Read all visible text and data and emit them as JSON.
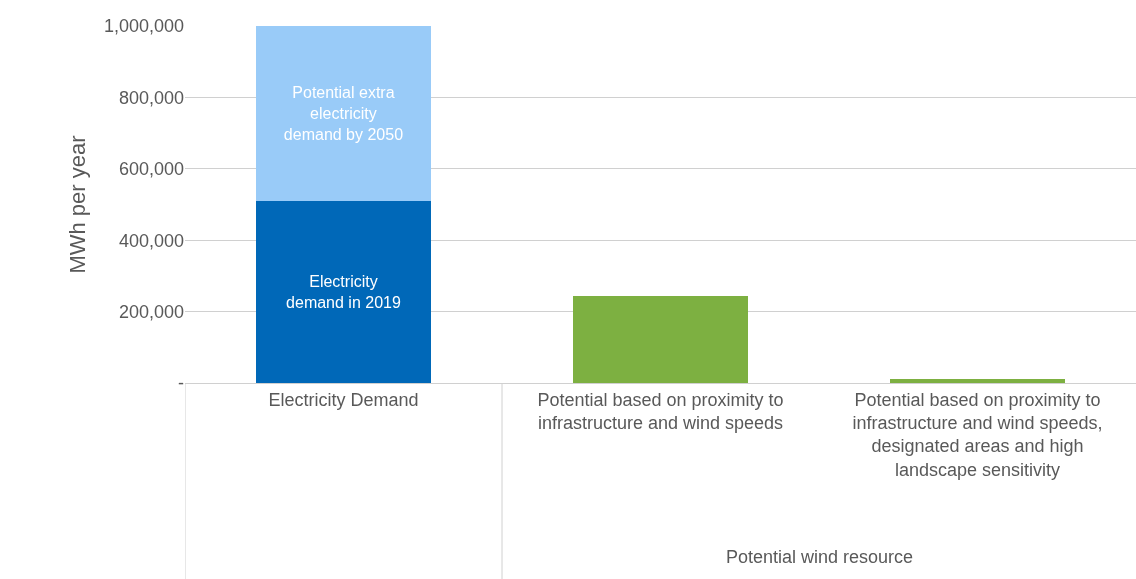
{
  "chart_data": {
    "type": "bar",
    "stacked": true,
    "ylabel": "MWh per year",
    "categories": [
      "Electricity Demand",
      "Potential based on proximity to infrastructure and wind speeds",
      "Potential based on proximity to infrastructure and wind speeds, designated areas and high landscape sensitivity"
    ],
    "series": [
      {
        "name": "Electricity demand in 2019",
        "color": "#0068b8",
        "values": [
          510000,
          null,
          null
        ]
      },
      {
        "name": "Potential extra electricity demand by 2050",
        "color": "#99cbf8",
        "values": [
          490000,
          null,
          null
        ]
      },
      {
        "color": "#7db041",
        "values": [
          null,
          245000,
          10000
        ]
      }
    ],
    "annotations": [
      "Potential wind resource"
    ],
    "ylim": [
      0,
      1000000
    ],
    "yticks": [
      {
        "value": 0,
        "label": "-"
      },
      {
        "value": 200000,
        "label": "200,000"
      },
      {
        "value": 400000,
        "label": "400,000"
      },
      {
        "value": 600000,
        "label": "600,000"
      },
      {
        "value": 800000,
        "label": "800,000"
      },
      {
        "value": 1000000,
        "label": "1,000,000"
      }
    ],
    "grid": "y",
    "legend": false
  }
}
